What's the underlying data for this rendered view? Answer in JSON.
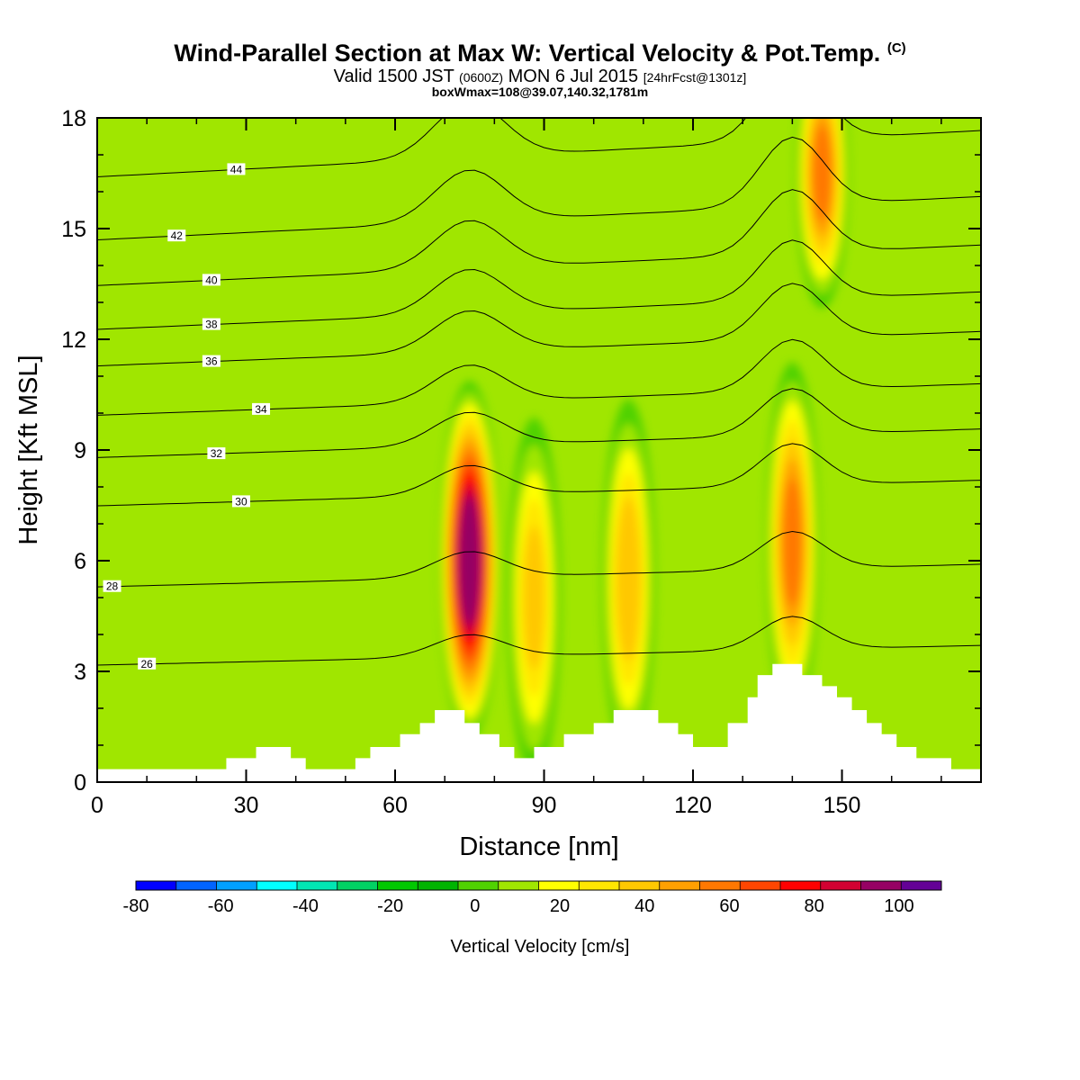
{
  "header": {
    "title": "Wind-Parallel Section at Max W: Vertical Velocity & Pot.Temp.",
    "title_mark": "(C)",
    "valid_prefix": "Valid 1500 JST",
    "valid_utc": "(0600Z)",
    "valid_date": "MON 6 Jul 2015",
    "valid_fcst": "[24hrFcst@1301z]",
    "box_info": "boxWmax=108@39.07,140.32,1781m"
  },
  "chart_data": {
    "type": "heatmap",
    "xlabel": "Distance [nm]",
    "ylabel": "Height [Kft MSL]",
    "xlim": [
      0,
      178
    ],
    "ylim": [
      0,
      18
    ],
    "x_ticks": [
      0,
      30,
      60,
      90,
      120,
      150
    ],
    "y_ticks": [
      0,
      3,
      6,
      9,
      12,
      15,
      18
    ],
    "grid": false,
    "colorbar": {
      "label": "Vertical Velocity [cm/s]",
      "placement": "bottom",
      "levels": [
        -80,
        -70,
        -60,
        -50,
        -40,
        -30,
        -20,
        -10,
        0,
        10,
        20,
        30,
        40,
        50,
        60,
        70,
        80,
        90,
        100,
        110
      ],
      "tick_labels": [
        "-80",
        "-60",
        "-40",
        "-20",
        "0",
        "20",
        "40",
        "60",
        "80",
        "100"
      ],
      "colors": [
        "#0000ff",
        "#0064ff",
        "#00a0ff",
        "#00ffff",
        "#00e6b4",
        "#00d264",
        "#00c800",
        "#00b400",
        "#50d200",
        "#a0e600",
        "#ffff00",
        "#ffe600",
        "#ffc800",
        "#ffa000",
        "#ff7800",
        "#ff4600",
        "#ff0000",
        "#d20032",
        "#960064",
        "#640096"
      ]
    },
    "vertical_velocity_cores": [
      {
        "x": 75,
        "z": 6.0,
        "w": 108
      },
      {
        "x": 88,
        "z": 5.0,
        "w": 40
      },
      {
        "x": 107,
        "z": 5.5,
        "w": 45
      },
      {
        "x": 140,
        "z": 6.5,
        "w": 60
      },
      {
        "x": 146,
        "z": 16.5,
        "w": 60
      }
    ],
    "theta_contours": [
      {
        "theta": 26,
        "label_x": 10,
        "label_z": 3.2
      },
      {
        "theta": 28,
        "label_x": 3,
        "label_z": 5.3
      },
      {
        "theta": 30,
        "label_x": 29,
        "label_z": 7.6
      },
      {
        "theta": 32,
        "label_x": 24,
        "label_z": 8.9
      },
      {
        "theta": 34,
        "label_x": 33,
        "label_z": 10.1
      },
      {
        "theta": 36,
        "label_x": 23,
        "label_z": 11.4
      },
      {
        "theta": 38,
        "label_x": 23,
        "label_z": 12.4
      },
      {
        "theta": 40,
        "label_x": 23,
        "label_z": 13.6
      },
      {
        "theta": 42,
        "label_x": 16,
        "label_z": 14.8
      },
      {
        "theta": 44,
        "label_x": 28,
        "label_z": 16.6
      }
    ],
    "terrain": [
      [
        0,
        0.35
      ],
      [
        26,
        0.35
      ],
      [
        26,
        0.65
      ],
      [
        32,
        0.65
      ],
      [
        32,
        0.95
      ],
      [
        39,
        0.95
      ],
      [
        39,
        0.65
      ],
      [
        42,
        0.65
      ],
      [
        42,
        0.35
      ],
      [
        52,
        0.35
      ],
      [
        52,
        0.65
      ],
      [
        55,
        0.65
      ],
      [
        55,
        0.95
      ],
      [
        61,
        0.95
      ],
      [
        61,
        1.3
      ],
      [
        65,
        1.3
      ],
      [
        65,
        1.6
      ],
      [
        68,
        1.6
      ],
      [
        68,
        1.95
      ],
      [
        74,
        1.95
      ],
      [
        74,
        1.6
      ],
      [
        77,
        1.6
      ],
      [
        77,
        1.3
      ],
      [
        81,
        1.3
      ],
      [
        81,
        0.95
      ],
      [
        84,
        0.95
      ],
      [
        84,
        0.65
      ],
      [
        88,
        0.65
      ],
      [
        88,
        0.95
      ],
      [
        94,
        0.95
      ],
      [
        94,
        1.3
      ],
      [
        100,
        1.3
      ],
      [
        100,
        1.6
      ],
      [
        104,
        1.6
      ],
      [
        104,
        1.95
      ],
      [
        113,
        1.95
      ],
      [
        113,
        1.6
      ],
      [
        117,
        1.6
      ],
      [
        117,
        1.3
      ],
      [
        120,
        1.3
      ],
      [
        120,
        0.95
      ],
      [
        127,
        0.95
      ],
      [
        127,
        1.6
      ],
      [
        131,
        1.6
      ],
      [
        131,
        2.3
      ],
      [
        133,
        2.3
      ],
      [
        133,
        2.9
      ],
      [
        136,
        2.9
      ],
      [
        136,
        3.2
      ],
      [
        142,
        3.2
      ],
      [
        142,
        2.9
      ],
      [
        146,
        2.9
      ],
      [
        146,
        2.6
      ],
      [
        149,
        2.6
      ],
      [
        149,
        2.3
      ],
      [
        152,
        2.3
      ],
      [
        152,
        1.95
      ],
      [
        155,
        1.95
      ],
      [
        155,
        1.6
      ],
      [
        158,
        1.6
      ],
      [
        158,
        1.3
      ],
      [
        161,
        1.3
      ],
      [
        161,
        0.95
      ],
      [
        165,
        0.95
      ],
      [
        165,
        0.65
      ],
      [
        172,
        0.65
      ],
      [
        172,
        0.35
      ],
      [
        178,
        0.35
      ]
    ]
  }
}
